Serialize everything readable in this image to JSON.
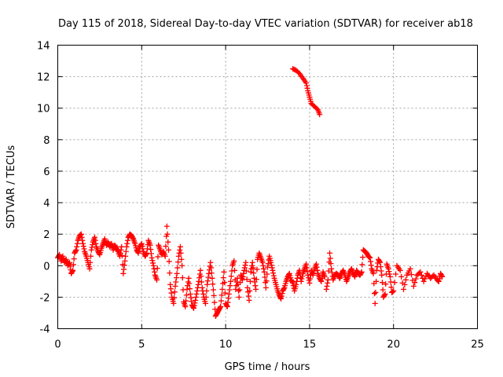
{
  "chart_data": {
    "type": "scatter",
    "title": "Day 115 of 2018, Sidereal Day-to-day VTEC variation (SDTVAR) for receiver ab18",
    "xlabel": "GPS time / hours",
    "ylabel": "SDTVAR / TECUs",
    "xlim": [
      0,
      25
    ],
    "ylim": [
      -4,
      14
    ],
    "xticks": [
      0,
      5,
      10,
      15,
      20,
      25
    ],
    "xtick_labels": [
      "0",
      "5",
      "10",
      "15",
      "20",
      "25"
    ],
    "yticks": [
      -4,
      -2,
      0,
      2,
      4,
      6,
      8,
      10,
      12,
      14
    ],
    "ytick_labels": [
      "-4",
      "-2",
      "0",
      "2",
      "4",
      "6",
      "8",
      "10",
      "12",
      "14"
    ],
    "grid": true,
    "marker": "plus",
    "color": "#ff0000",
    "series": [
      {
        "name": "SDTVAR",
        "points": [
          [
            0.0,
            0.5
          ],
          [
            0.1,
            0.7
          ],
          [
            0.2,
            0.3
          ],
          [
            0.3,
            0.6
          ],
          [
            0.4,
            0.2
          ],
          [
            0.5,
            0.4
          ],
          [
            0.6,
            0.0
          ],
          [
            0.7,
            0.2
          ],
          [
            0.8,
            -0.5
          ],
          [
            0.9,
            -0.3
          ],
          [
            1.0,
            0.8
          ],
          [
            1.1,
            1.0
          ],
          [
            1.2,
            1.6
          ],
          [
            1.3,
            1.9
          ],
          [
            1.4,
            2.0
          ],
          [
            1.5,
            1.4
          ],
          [
            1.6,
            0.9
          ],
          [
            1.7,
            0.6
          ],
          [
            1.8,
            0.2
          ],
          [
            1.9,
            -0.2
          ],
          [
            2.0,
            1.0
          ],
          [
            2.1,
            1.5
          ],
          [
            2.2,
            1.8
          ],
          [
            2.3,
            1.2
          ],
          [
            2.4,
            0.9
          ],
          [
            2.5,
            0.7
          ],
          [
            2.6,
            1.1
          ],
          [
            2.7,
            1.4
          ],
          [
            2.8,
            1.7
          ],
          [
            2.9,
            1.3
          ],
          [
            3.0,
            1.5
          ],
          [
            3.1,
            1.2
          ],
          [
            3.2,
            1.4
          ],
          [
            3.3,
            1.0
          ],
          [
            3.4,
            1.3
          ],
          [
            3.5,
            1.1
          ],
          [
            3.6,
            0.9
          ],
          [
            3.7,
            0.6
          ],
          [
            3.8,
            1.2
          ],
          [
            3.9,
            -0.5
          ],
          [
            4.0,
            0.3
          ],
          [
            4.1,
            1.2
          ],
          [
            4.2,
            1.8
          ],
          [
            4.3,
            2.0
          ],
          [
            4.4,
            1.9
          ],
          [
            4.5,
            1.7
          ],
          [
            4.6,
            1.4
          ],
          [
            4.7,
            1.0
          ],
          [
            4.8,
            0.8
          ],
          [
            4.9,
            1.2
          ],
          [
            5.0,
            1.4
          ],
          [
            5.1,
            0.9
          ],
          [
            5.2,
            0.6
          ],
          [
            5.3,
            0.8
          ],
          [
            5.4,
            1.6
          ],
          [
            5.5,
            1.3
          ],
          [
            5.6,
            0.5
          ],
          [
            5.7,
            0.0
          ],
          [
            5.8,
            -0.6
          ],
          [
            5.9,
            -0.9
          ],
          [
            6.0,
            1.3
          ],
          [
            6.1,
            1.0
          ],
          [
            6.2,
            0.7
          ],
          [
            6.3,
            0.9
          ],
          [
            6.4,
            0.6
          ],
          [
            6.5,
            2.5
          ],
          [
            6.6,
            1.0
          ],
          [
            6.7,
            -1.2
          ],
          [
            6.8,
            -2.0
          ],
          [
            6.9,
            -2.4
          ],
          [
            7.0,
            -1.3
          ],
          [
            7.1,
            -0.5
          ],
          [
            7.2,
            0.6
          ],
          [
            7.3,
            1.2
          ],
          [
            7.4,
            0.0
          ],
          [
            7.5,
            -2.3
          ],
          [
            7.6,
            -2.6
          ],
          [
            7.7,
            -1.5
          ],
          [
            7.8,
            -0.8
          ],
          [
            7.9,
            -1.8
          ],
          [
            8.0,
            -2.5
          ],
          [
            8.1,
            -2.7
          ],
          [
            8.2,
            -2.2
          ],
          [
            8.3,
            -1.6
          ],
          [
            8.4,
            -1.0
          ],
          [
            8.5,
            -0.3
          ],
          [
            8.6,
            -1.4
          ],
          [
            8.7,
            -2.0
          ],
          [
            8.8,
            -2.4
          ],
          [
            8.9,
            -1.2
          ],
          [
            9.0,
            -0.5
          ],
          [
            9.1,
            0.2
          ],
          [
            9.2,
            -0.8
          ],
          [
            9.3,
            -1.9
          ],
          [
            9.4,
            -3.2
          ],
          [
            9.5,
            -3.0
          ],
          [
            9.6,
            -2.8
          ],
          [
            9.7,
            -2.6
          ],
          [
            9.8,
            -1.5
          ],
          [
            9.9,
            -0.4
          ],
          [
            10.0,
            -2.4
          ],
          [
            10.1,
            -2.6
          ],
          [
            10.2,
            -1.8
          ],
          [
            10.3,
            -1.0
          ],
          [
            10.4,
            0.0
          ],
          [
            10.5,
            0.3
          ],
          [
            10.6,
            -1.5
          ],
          [
            10.7,
            -0.8
          ],
          [
            10.8,
            -2.0
          ],
          [
            10.9,
            -0.6
          ],
          [
            11.0,
            -0.9
          ],
          [
            11.1,
            -0.3
          ],
          [
            11.2,
            0.2
          ],
          [
            11.3,
            -1.4
          ],
          [
            11.4,
            -2.2
          ],
          [
            11.5,
            -0.4
          ],
          [
            11.6,
            0.2
          ],
          [
            11.7,
            -0.8
          ],
          [
            11.8,
            -1.5
          ],
          [
            11.9,
            0.4
          ],
          [
            12.0,
            0.8
          ],
          [
            12.1,
            0.5
          ],
          [
            12.2,
            0.2
          ],
          [
            12.3,
            -0.4
          ],
          [
            12.4,
            -1.4
          ],
          [
            12.5,
            -0.1
          ],
          [
            12.6,
            0.6
          ],
          [
            12.7,
            0.2
          ],
          [
            12.8,
            -0.3
          ],
          [
            12.9,
            -0.8
          ],
          [
            13.0,
            -1.2
          ],
          [
            13.1,
            -1.6
          ],
          [
            13.2,
            -1.9
          ],
          [
            13.3,
            -2.1
          ],
          [
            13.4,
            -1.6
          ],
          [
            13.5,
            -1.4
          ],
          [
            13.6,
            -1.0
          ],
          [
            13.7,
            -0.7
          ],
          [
            13.8,
            -0.5
          ],
          [
            13.9,
            -0.9
          ],
          [
            14.0,
            -1.1
          ],
          [
            14.1,
            -1.6
          ],
          [
            14.2,
            -1.2
          ],
          [
            14.3,
            -0.6
          ],
          [
            14.4,
            -0.3
          ],
          [
            14.5,
            -1.0
          ],
          [
            14.6,
            -0.5
          ],
          [
            14.7,
            -0.2
          ],
          [
            14.8,
            0.1
          ],
          [
            14.9,
            -0.6
          ],
          [
            15.0,
            -1.1
          ],
          [
            15.1,
            -0.3
          ],
          [
            15.2,
            -0.6
          ],
          [
            15.3,
            -0.2
          ],
          [
            15.4,
            0.1
          ],
          [
            15.5,
            -0.5
          ],
          [
            15.6,
            -0.8
          ],
          [
            15.7,
            -1.0
          ],
          [
            15.8,
            -0.4
          ],
          [
            15.9,
            -0.7
          ],
          [
            14.0,
            12.5
          ],
          [
            14.2,
            12.4
          ],
          [
            14.4,
            12.2
          ],
          [
            14.6,
            11.9
          ],
          [
            14.8,
            11.6
          ],
          [
            14.9,
            11.1
          ],
          [
            15.0,
            10.7
          ],
          [
            15.1,
            10.3
          ],
          [
            15.3,
            10.1
          ],
          [
            15.5,
            9.9
          ],
          [
            15.6,
            9.6
          ],
          [
            16.0,
            -1.5
          ],
          [
            16.1,
            -0.9
          ],
          [
            16.2,
            0.8
          ],
          [
            16.3,
            -0.2
          ],
          [
            16.4,
            -0.9
          ],
          [
            16.5,
            -0.6
          ],
          [
            16.6,
            -0.5
          ],
          [
            16.7,
            -0.6
          ],
          [
            16.8,
            -0.8
          ],
          [
            16.9,
            -0.5
          ],
          [
            17.0,
            -0.3
          ],
          [
            17.1,
            -0.6
          ],
          [
            17.2,
            -1.0
          ],
          [
            17.3,
            -0.7
          ],
          [
            17.4,
            -0.4
          ],
          [
            17.5,
            -0.2
          ],
          [
            17.6,
            -0.5
          ],
          [
            17.7,
            -0.7
          ],
          [
            17.8,
            -0.3
          ],
          [
            17.9,
            -0.5
          ],
          [
            18.0,
            -0.6
          ],
          [
            18.1,
            -0.4
          ],
          [
            18.2,
            1.0
          ],
          [
            18.3,
            0.9
          ],
          [
            18.4,
            0.8
          ],
          [
            18.5,
            0.6
          ],
          [
            18.6,
            0.5
          ],
          [
            18.7,
            -0.2
          ],
          [
            18.8,
            -0.5
          ],
          [
            18.9,
            -2.4
          ],
          [
            19.0,
            -0.3
          ],
          [
            19.1,
            0.4
          ],
          [
            19.2,
            0.2
          ],
          [
            19.3,
            -0.6
          ],
          [
            19.4,
            -2.0
          ],
          [
            19.5,
            -1.8
          ],
          [
            19.6,
            0.1
          ],
          [
            19.7,
            -0.2
          ],
          [
            19.8,
            -0.7
          ],
          [
            19.9,
            -1.7
          ],
          [
            20.0,
            -1.6
          ],
          [
            20.2,
            0.0
          ],
          [
            20.4,
            -0.3
          ],
          [
            20.6,
            -1.5
          ],
          [
            20.8,
            -0.6
          ],
          [
            21.0,
            -0.2
          ],
          [
            21.2,
            -1.3
          ],
          [
            21.4,
            -0.6
          ],
          [
            21.6,
            -0.4
          ],
          [
            21.8,
            -1.0
          ],
          [
            22.0,
            -0.5
          ],
          [
            22.2,
            -0.8
          ],
          [
            22.4,
            -0.6
          ],
          [
            22.6,
            -0.9
          ],
          [
            22.7,
            -1.0
          ],
          [
            22.8,
            -0.5
          ],
          [
            22.9,
            -0.7
          ]
        ]
      }
    ]
  }
}
